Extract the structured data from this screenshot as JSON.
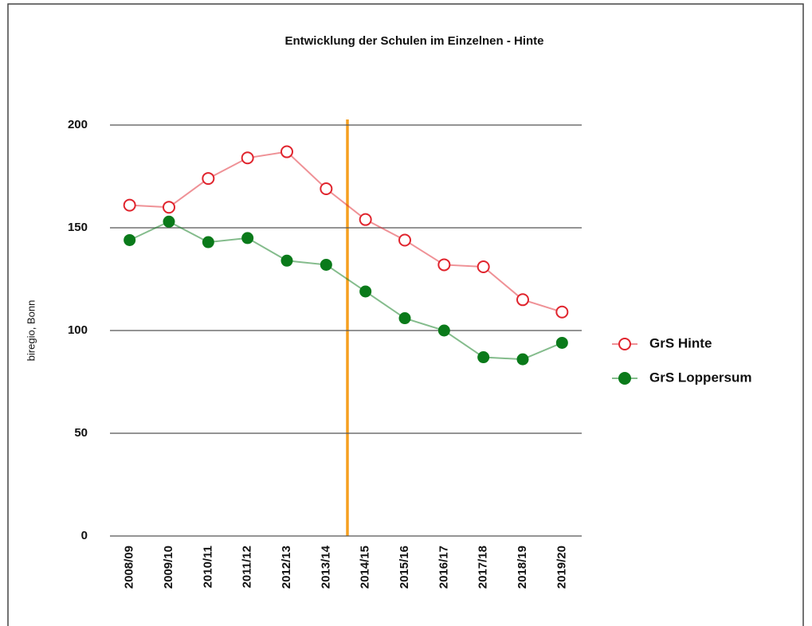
{
  "chart_data": {
    "type": "line",
    "title": "Entwicklung der Schulen im Einzelnen - Hinte",
    "ylabel": "biregio, Bonn",
    "categories": [
      "2008/09",
      "2009/10",
      "2010/11",
      "2011/12",
      "2012/13",
      "2013/14",
      "2014/15",
      "2015/16",
      "2016/17",
      "2017/18",
      "2018/19",
      "2019/20"
    ],
    "series": [
      {
        "name": "GrS Hinte",
        "color": "#e0242d",
        "marker": "open",
        "values": [
          161,
          160,
          174,
          184,
          187,
          169,
          154,
          144,
          132,
          131,
          115,
          109
        ]
      },
      {
        "name": "GrS Loppersum",
        "color": "#0a7a1a",
        "marker": "filled",
        "values": [
          144,
          153,
          143,
          145,
          134,
          132,
          119,
          106,
          100,
          87,
          86,
          94
        ]
      }
    ],
    "ylim": [
      0,
      200
    ],
    "yticks": [
      0,
      50,
      100,
      150,
      200
    ],
    "grid": true,
    "legend": "right"
  }
}
